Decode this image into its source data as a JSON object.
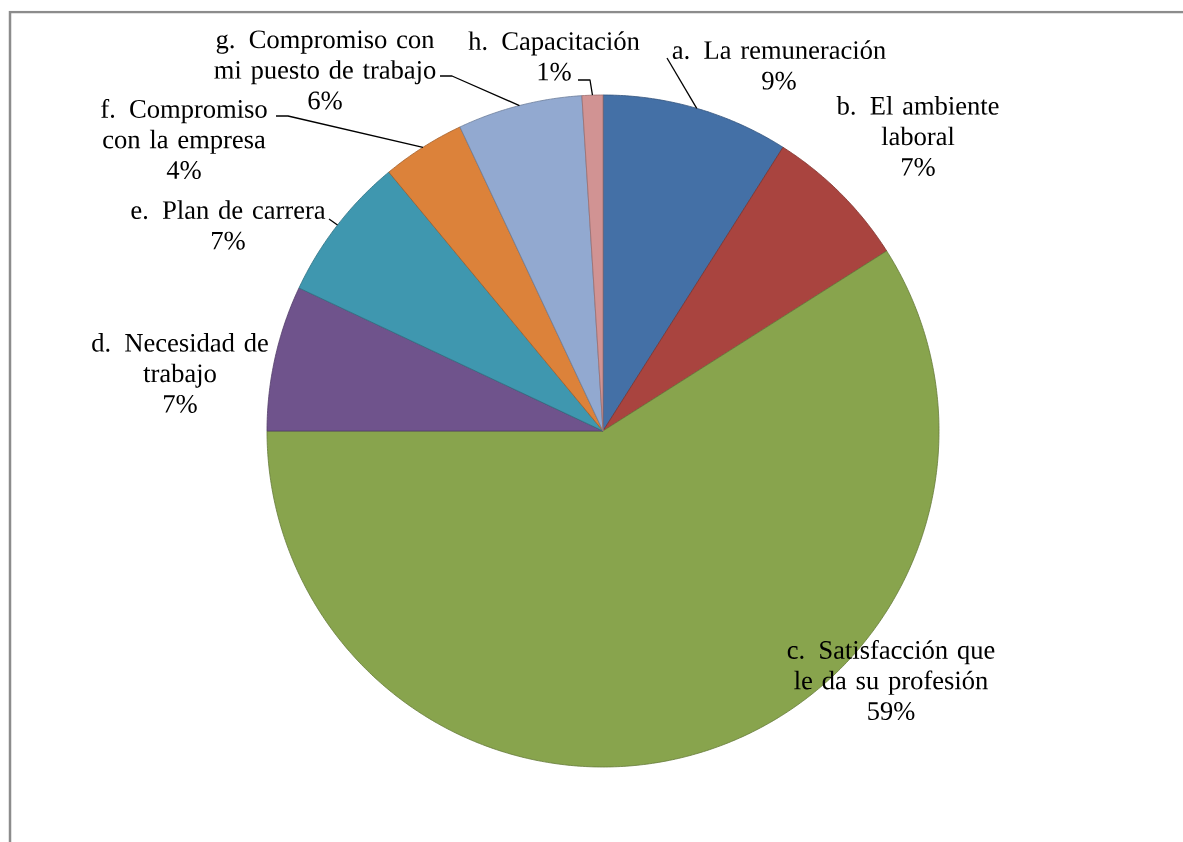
{
  "chart_data": {
    "type": "pie",
    "categories": [
      "a. La remuneración",
      "b. El ambiente laboral",
      "c. Satisfacción que le da su profesión",
      "d. Necesidad de trabajo",
      "e. Plan de carrera",
      "f. Compromiso con la empresa",
      "g. Compromiso con mi puesto de trabajo",
      "h. Capacitación"
    ],
    "values": [
      9,
      7,
      59,
      7,
      7,
      4,
      6,
      1
    ],
    "value_labels": [
      "9%",
      "7%",
      "59%",
      "7%",
      "7%",
      "4%",
      "6%",
      "1%"
    ],
    "colors": [
      "#4470a6",
      "#a9443f",
      "#88a44d",
      "#6f538c",
      "#3f97af",
      "#dc823a",
      "#92a9d0",
      "#d19393"
    ]
  }
}
